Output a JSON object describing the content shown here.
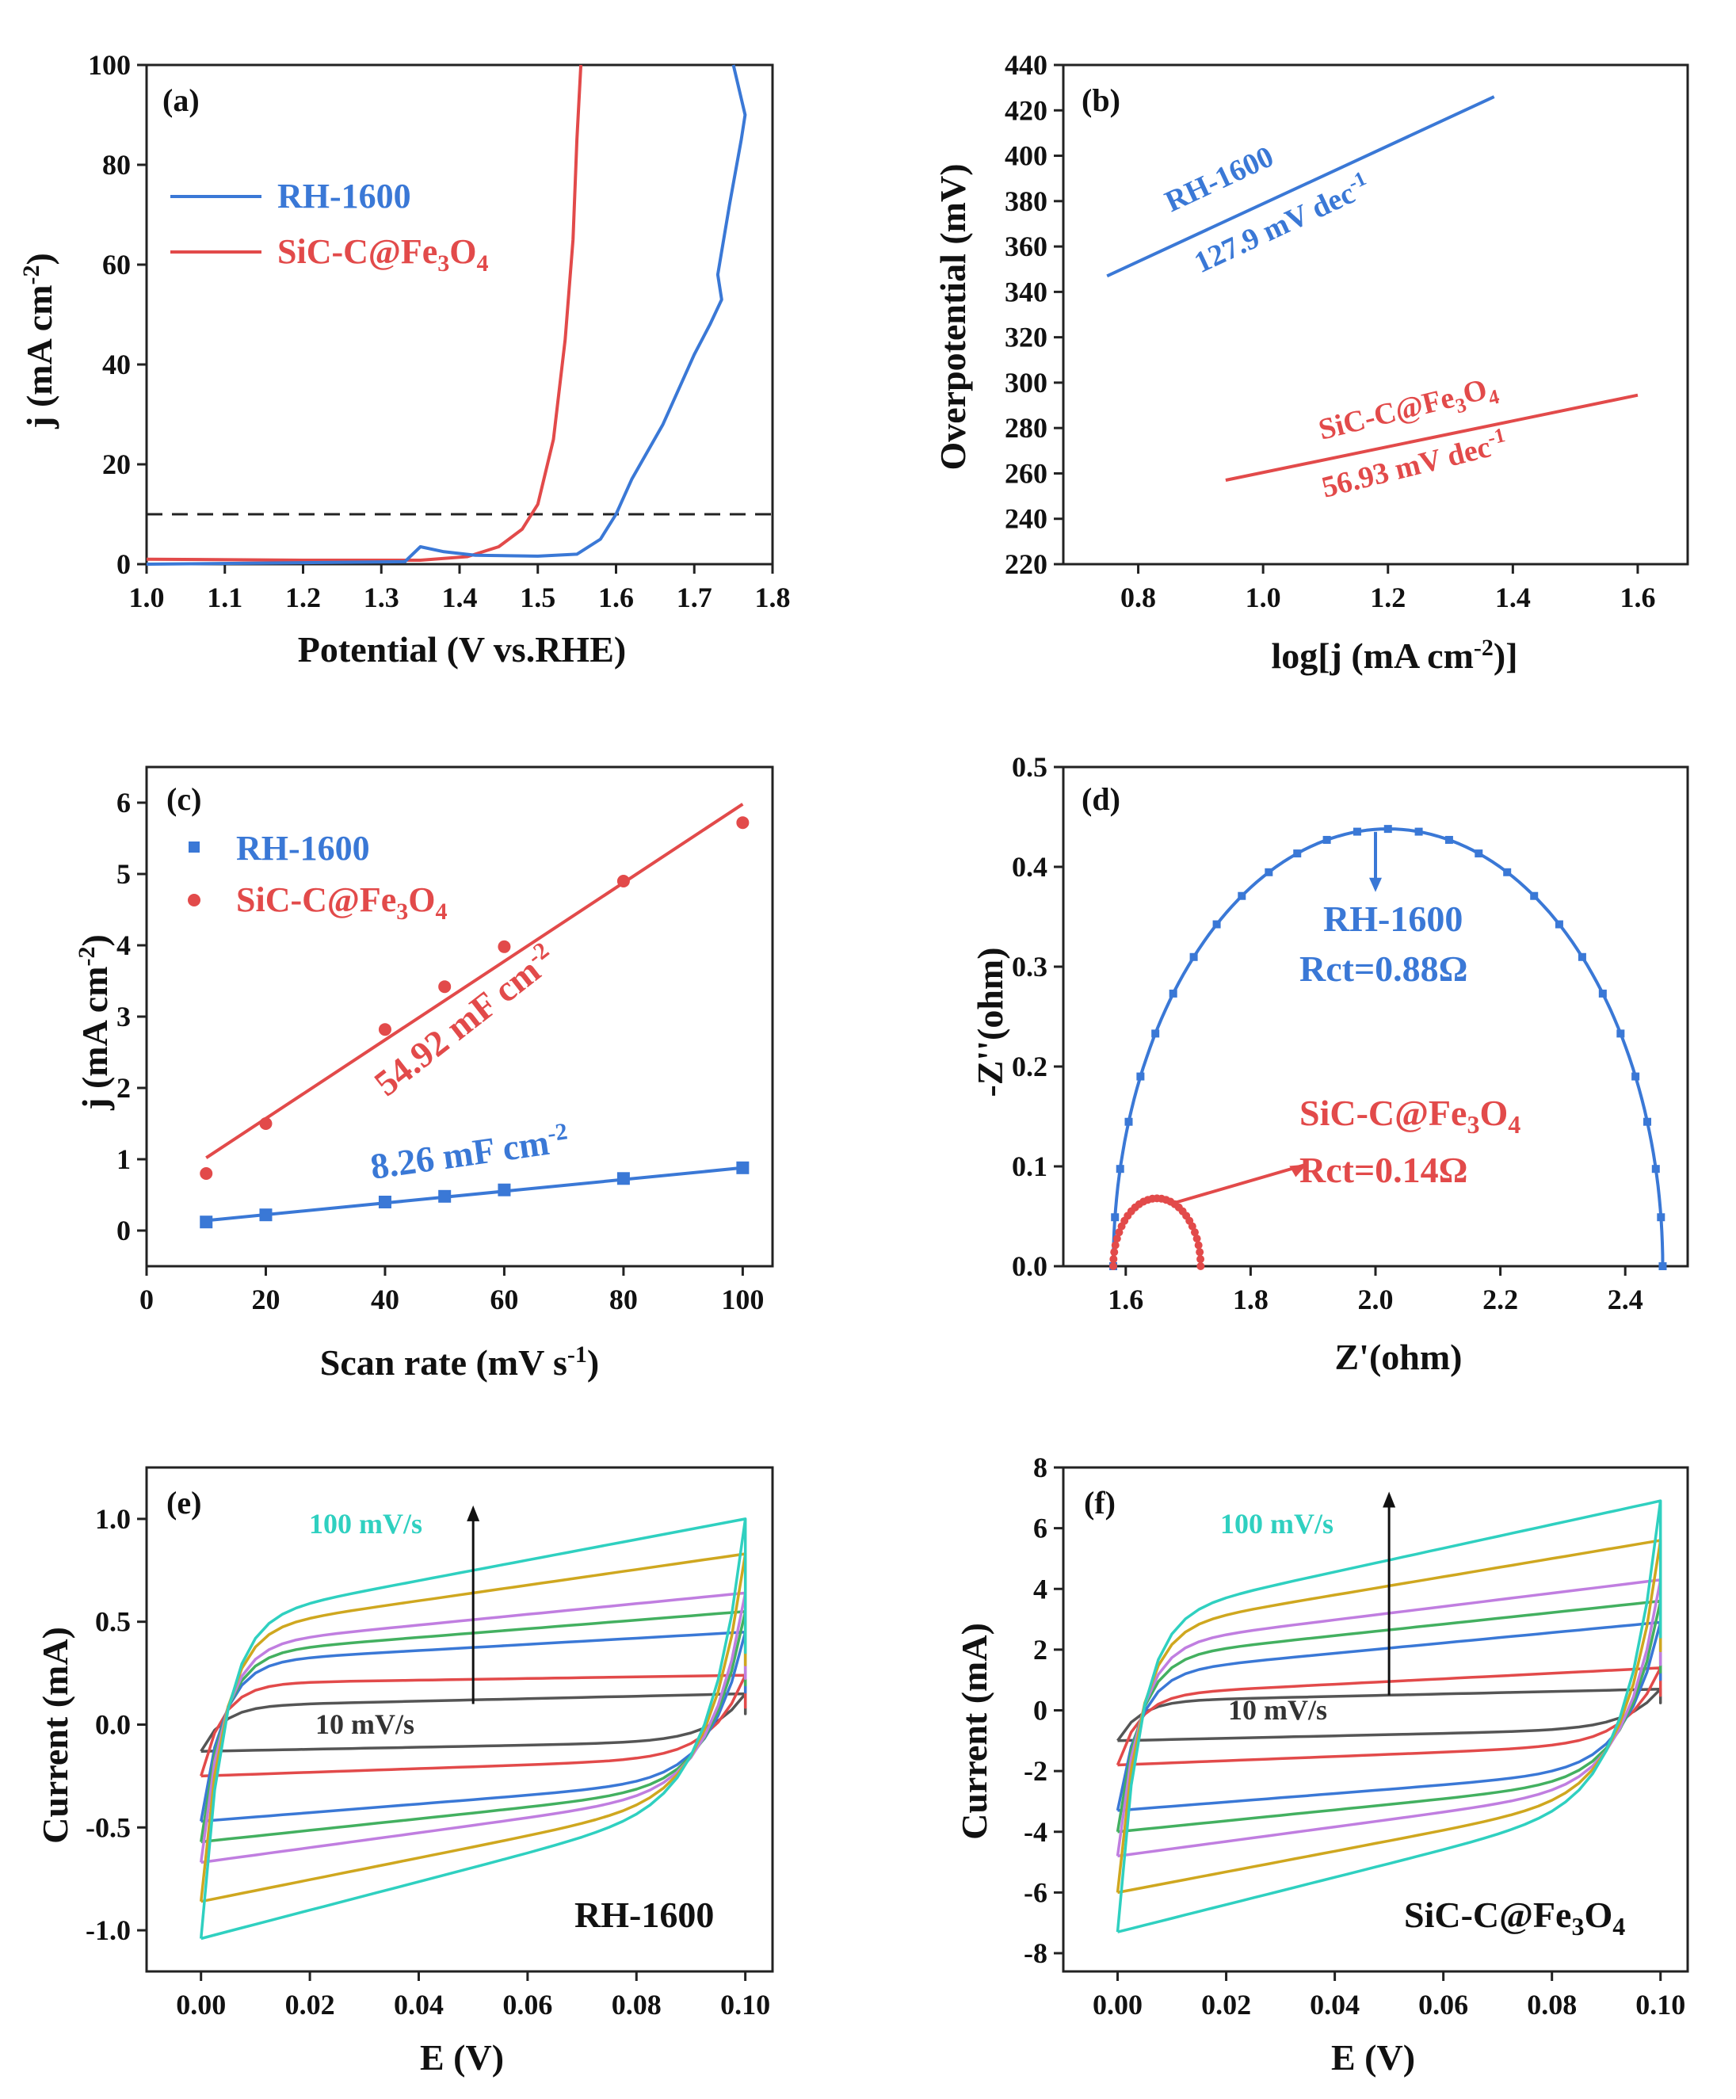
{
  "colors": {
    "blue": "#3a78d6",
    "red": "#e24a4a",
    "cv": [
      "#555555",
      "#e24a4a",
      "#3a78d6",
      "#43b060",
      "#c07ee0",
      "#cfa71f",
      "#2fd0c0"
    ]
  },
  "chart_data": [
    {
      "panel": "(a)",
      "type": "line",
      "xlabel": "Potential (V vs.RHE)",
      "ylabel": "j (mA cm-2)",
      "xlim": [
        1.0,
        1.8
      ],
      "ylim": [
        0,
        100
      ],
      "xticks": [
        "1.0",
        "1.1",
        "1.2",
        "1.3",
        "1.4",
        "1.5",
        "1.6",
        "1.7",
        "1.8"
      ],
      "yticks": [
        "0",
        "20",
        "40",
        "60",
        "80",
        "100"
      ],
      "reference_line": 10,
      "legend": [
        "RH-1600",
        "SiC-C@Fe3O4"
      ],
      "series": [
        {
          "name": "RH-1600",
          "x": [
            1.0,
            1.2,
            1.33,
            1.35,
            1.38,
            1.42,
            1.5,
            1.55,
            1.58,
            1.6,
            1.62,
            1.66,
            1.7,
            1.72,
            1.735,
            1.73,
            1.745,
            1.76,
            1.765,
            1.75
          ],
          "y": [
            0,
            0.3,
            0.5,
            3.5,
            2.5,
            1.8,
            1.6,
            2.0,
            5.0,
            10.0,
            17.0,
            28.0,
            42.0,
            48.0,
            53.0,
            58.0,
            72.0,
            85.0,
            90.0,
            100.0
          ]
        },
        {
          "name": "SiC-C@Fe3O4",
          "x": [
            1.0,
            1.2,
            1.35,
            1.41,
            1.45,
            1.48,
            1.5,
            1.52,
            1.535,
            1.545,
            1.55,
            1.555
          ],
          "y": [
            1.0,
            0.8,
            0.8,
            1.5,
            3.5,
            7.0,
            12.0,
            25.0,
            45.0,
            65.0,
            85.0,
            100.0
          ]
        }
      ]
    },
    {
      "panel": "(b)",
      "type": "line",
      "xlabel": "log[j (mA cm-2)]",
      "ylabel": "Overpotential (mV)",
      "xlim": [
        0.68,
        1.68
      ],
      "ylim": [
        220,
        440
      ],
      "xticks": [
        "0.8",
        "1.0",
        "1.2",
        "1.4",
        "1.6"
      ],
      "yticks": [
        "220",
        "240",
        "260",
        "280",
        "300",
        "320",
        "340",
        "360",
        "380",
        "400",
        "420",
        "440"
      ],
      "series": [
        {
          "name": "RH-1600",
          "label": "127.9 mV dec-1",
          "x": [
            0.75,
            1.37
          ],
          "y": [
            347,
            426
          ]
        },
        {
          "name": "SiC-C@Fe3O4",
          "label": "56.93 mV dec-1",
          "x": [
            0.94,
            1.6
          ],
          "y": [
            257,
            294.5
          ]
        }
      ]
    },
    {
      "panel": "(c)",
      "type": "scatter",
      "xlabel": "Scan rate (mV s-1)",
      "ylabel": "j (mA cm-2)",
      "xlim": [
        0,
        105
      ],
      "ylim": [
        -0.5,
        6.5
      ],
      "xticks": [
        "0",
        "20",
        "40",
        "60",
        "80",
        "100"
      ],
      "yticks": [
        "0",
        "1",
        "2",
        "3",
        "4",
        "5",
        "6"
      ],
      "legend": [
        "RH-1600",
        "SiC-C@Fe3O4"
      ],
      "series": [
        {
          "name": "RH-1600",
          "label": "8.26 mF cm-2",
          "x": [
            10,
            20,
            40,
            50,
            60,
            80,
            100
          ],
          "y": [
            0.12,
            0.22,
            0.4,
            0.48,
            0.57,
            0.73,
            0.88
          ],
          "fit": [
            [
              10,
              0.14
            ],
            [
              100,
              0.88
            ]
          ]
        },
        {
          "name": "SiC-C@Fe3O4",
          "label": "54.92 mF cm-2",
          "x": [
            10,
            20,
            40,
            50,
            60,
            80,
            100
          ],
          "y": [
            0.8,
            1.5,
            2.82,
            3.42,
            3.98,
            4.9,
            5.72
          ],
          "fit": [
            [
              10,
              1.02
            ],
            [
              100,
              5.98
            ]
          ]
        }
      ]
    },
    {
      "panel": "(d)",
      "type": "scatter",
      "xlabel": "Z'(ohm)",
      "ylabel": "-Z''(ohm)",
      "xlim": [
        1.5,
        2.5
      ],
      "ylim": [
        0,
        0.5
      ],
      "xticks": [
        "1.6",
        "1.8",
        "2.0",
        "2.2",
        "2.4"
      ],
      "yticks": [
        "0.0",
        "0.1",
        "0.2",
        "0.3",
        "0.4",
        "0.5"
      ],
      "series": [
        {
          "name": "RH-1600",
          "label": "Rct=0.88Ω",
          "Rs": 1.58,
          "Rct": 0.88,
          "peak": 0.438
        },
        {
          "name": "SiC-C@Fe3O4",
          "label": "Rct=0.14Ω",
          "Rs": 1.58,
          "Rct": 0.14,
          "peak": 0.068
        }
      ]
    },
    {
      "panel": "(e)",
      "type": "line",
      "title": "RH-1600",
      "xlabel": "E (V)",
      "ylabel": "Current (mA)",
      "xlim": [
        -0.01,
        0.105
      ],
      "ylim": [
        -1.2,
        1.25
      ],
      "xticks": [
        "0.00",
        "0.02",
        "0.04",
        "0.06",
        "0.08",
        "0.10"
      ],
      "yticks": [
        "-1.0",
        "-0.5",
        "0.0",
        "0.5",
        "1.0"
      ],
      "annotations": [
        "100 mV/s",
        "10 mV/s"
      ],
      "scan_rates": [
        10,
        20,
        40,
        50,
        60,
        80,
        100
      ],
      "anodic_start": [
        0.09,
        0.2,
        0.3,
        0.34,
        0.38,
        0.45,
        0.5
      ],
      "anodic_end": [
        0.15,
        0.24,
        0.45,
        0.55,
        0.64,
        0.83,
        1.0
      ],
      "cathodic_start": [
        -0.13,
        -0.25,
        -0.47,
        -0.57,
        -0.67,
        -0.86,
        -1.04
      ],
      "cathodic_end": [
        -0.08,
        -0.16,
        -0.26,
        -0.29,
        -0.31,
        -0.33,
        -0.35
      ]
    },
    {
      "panel": "(f)",
      "type": "line",
      "title": "SiC-C@Fe3O4",
      "xlabel": "E (V)",
      "ylabel": "Current (mA)",
      "xlim": [
        -0.01,
        0.105
      ],
      "ylim": [
        -8.6,
        8
      ],
      "xticks": [
        "0.00",
        "0.02",
        "0.04",
        "0.06",
        "0.08",
        "0.10"
      ],
      "yticks": [
        "-8",
        "-6",
        "-4",
        "-2",
        "0",
        "2",
        "4",
        "6",
        "8"
      ],
      "annotations": [
        "100 mV/s",
        "10 mV/s"
      ],
      "scan_rates": [
        10,
        20,
        40,
        50,
        60,
        80,
        100
      ],
      "anodic_start": [
        0.3,
        0.5,
        1.2,
        1.7,
        2.1,
        2.6,
        3.0
      ],
      "anodic_end": [
        0.7,
        1.4,
        2.9,
        3.6,
        4.3,
        5.6,
        6.9
      ],
      "cathodic_start": [
        -1.0,
        -1.8,
        -3.3,
        -4.0,
        -4.8,
        -6.0,
        -7.3
      ],
      "cathodic_end": [
        -0.6,
        -1.1,
        -1.9,
        -2.2,
        -2.4,
        -2.6,
        -2.8
      ]
    }
  ]
}
